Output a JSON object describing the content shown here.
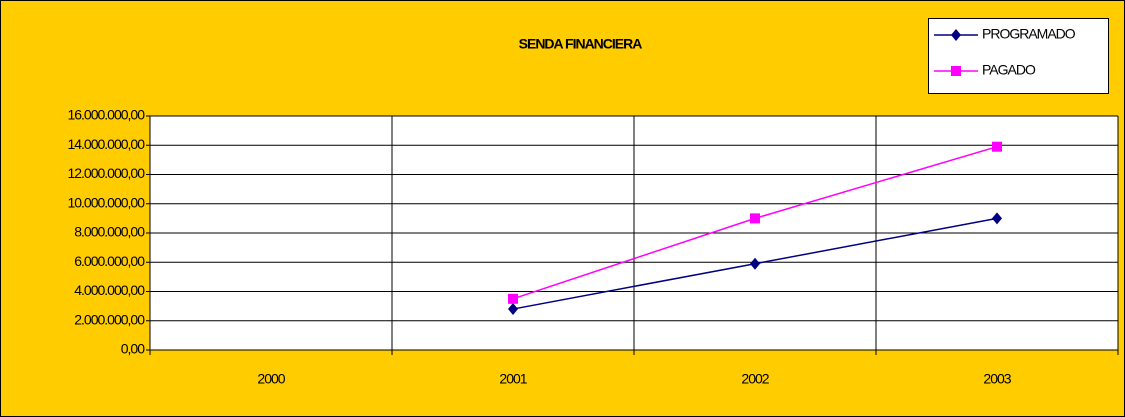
{
  "chart_data": {
    "type": "line",
    "title": "SENDA FINANCIERA",
    "categories": [
      "2000",
      "2001",
      "2002",
      "2003"
    ],
    "series": [
      {
        "name": "PROGRAMADO",
        "color": "#000080",
        "marker": "diamond",
        "values": [
          null,
          2800000,
          5900000,
          9000000
        ]
      },
      {
        "name": "PAGADO",
        "color": "#ff00ff",
        "marker": "square",
        "values": [
          null,
          3500000,
          9000000,
          13900000
        ]
      }
    ],
    "ylim": [
      0,
      16000000
    ],
    "yticks": [
      {
        "value": 0,
        "label": "0,00"
      },
      {
        "value": 2000000,
        "label": "2.000.000,00"
      },
      {
        "value": 4000000,
        "label": "4.000.000,00"
      },
      {
        "value": 6000000,
        "label": "6.000.000,00"
      },
      {
        "value": 8000000,
        "label": "8.000.000,00"
      },
      {
        "value": 10000000,
        "label": "10.000.000,00"
      },
      {
        "value": 12000000,
        "label": "12.000.000,00"
      },
      {
        "value": 14000000,
        "label": "14.000.000,00"
      },
      {
        "value": 16000000,
        "label": "16.000.000,00"
      }
    ],
    "grid": true,
    "legend": "top-right",
    "background": "#ffcc00"
  }
}
